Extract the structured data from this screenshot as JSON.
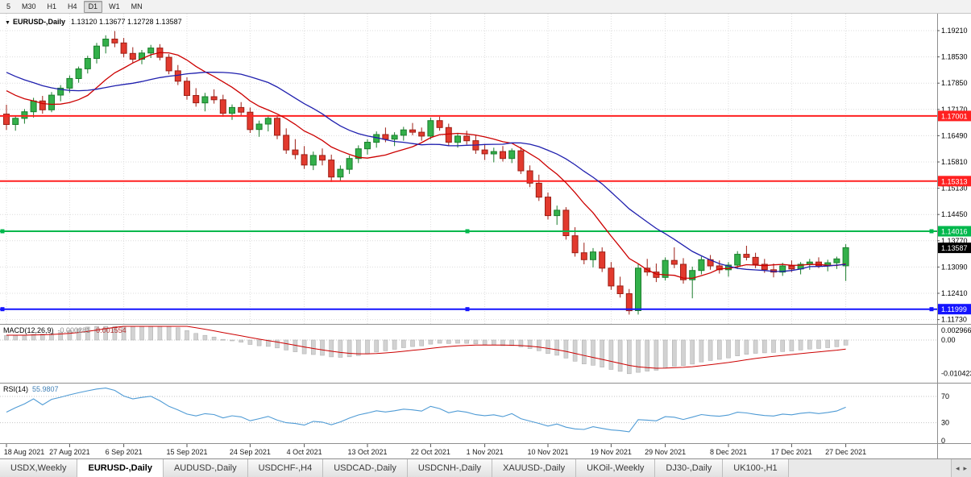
{
  "toolbar": {
    "timeframes": [
      {
        "label": "5",
        "active": false
      },
      {
        "label": "M30",
        "active": false
      },
      {
        "label": "H1",
        "active": false
      },
      {
        "label": "H4",
        "active": false
      },
      {
        "label": "D1",
        "active": true
      },
      {
        "label": "W1",
        "active": false
      },
      {
        "label": "MN",
        "active": false
      }
    ]
  },
  "chart": {
    "title": {
      "icon": "▼",
      "symbol": "EURUSD-,Daily",
      "ohlc": "1.13120 1.13677 1.12728 1.13587"
    },
    "price_axis_labels": [
      "1.19210",
      "1.18530",
      "1.17850",
      "1.17170",
      "1.16490",
      "1.15810",
      "1.15130",
      "1.14450",
      "1.13770",
      "1.13090",
      "1.12410",
      "1.11730"
    ],
    "price_axis_max": 1.1921,
    "price_axis_min": 1.1173,
    "hlines": [
      {
        "value": 1.17001,
        "label": "1.17001",
        "color": "#ff2020",
        "width": 2,
        "handles": false
      },
      {
        "value": 1.15313,
        "label": "1.15313",
        "color": "#ff2020",
        "width": 2,
        "handles": false
      },
      {
        "value": 1.14016,
        "label": "1.14016",
        "color": "#00b84c",
        "width": 2,
        "handles": true
      },
      {
        "value": 1.11999,
        "label": "1.11999",
        "color": "#1414ff",
        "width": 2,
        "handles": true
      }
    ],
    "current_price": {
      "value": 1.13587,
      "label": "1.13587",
      "bg": "#000000"
    },
    "colors": {
      "up_fill": "#33b04a",
      "up_stroke": "#1b7d2c",
      "down_fill": "#e23a2e",
      "down_stroke": "#9c1f16",
      "ma_fast": "#cc0000",
      "ma_slow": "#1f1fae",
      "grid": "#dcdcdc",
      "divider": "#8e8e8e",
      "axis_text": "#000000",
      "macd_bar_fill": "#d2d2d2",
      "macd_bar_stroke": "#b2b2b2",
      "macd_signal": "#cc0000",
      "rsi_line": "#4f9bd5",
      "level_line": "#c4c4c4"
    }
  },
  "chart_data": {
    "type": "candlestick",
    "symbol": "EURUSD-",
    "timeframe": "Daily",
    "x_tick_labels": [
      "18 Aug 2021",
      "27 Aug 2021",
      "6 Sep 2021",
      "15 Sep 2021",
      "24 Sep 2021",
      "4 Oct 2021",
      "13 Oct 2021",
      "22 Oct 2021",
      "1 Nov 2021",
      "10 Nov 2021",
      "19 Nov 2021",
      "29 Nov 2021",
      "8 Dec 2021",
      "17 Dec 2021",
      "27 Dec 2021"
    ],
    "x_tick_indices": [
      0,
      7,
      13,
      20,
      27,
      33,
      40,
      47,
      53,
      60,
      67,
      73,
      80,
      87,
      93
    ],
    "ohlc": [
      [
        1.1705,
        1.1729,
        1.1664,
        1.1678
      ],
      [
        1.1678,
        1.1701,
        1.1662,
        1.1694
      ],
      [
        1.1694,
        1.1718,
        1.168,
        1.1711
      ],
      [
        1.1711,
        1.1747,
        1.1696,
        1.1739
      ],
      [
        1.1739,
        1.1752,
        1.1706,
        1.1716
      ],
      [
        1.1716,
        1.1762,
        1.171,
        1.1754
      ],
      [
        1.1754,
        1.178,
        1.1738,
        1.1772
      ],
      [
        1.1772,
        1.1805,
        1.176,
        1.1797
      ],
      [
        1.1797,
        1.1828,
        1.1786,
        1.1822
      ],
      [
        1.1822,
        1.1856,
        1.181,
        1.1849
      ],
      [
        1.1849,
        1.1889,
        1.1836,
        1.1881
      ],
      [
        1.1881,
        1.1909,
        1.1862,
        1.1899
      ],
      [
        1.1899,
        1.192,
        1.1878,
        1.1889
      ],
      [
        1.1889,
        1.1902,
        1.1852,
        1.1862
      ],
      [
        1.1862,
        1.1878,
        1.1838,
        1.1847
      ],
      [
        1.1847,
        1.1871,
        1.1834,
        1.1863
      ],
      [
        1.1863,
        1.1884,
        1.185,
        1.1876
      ],
      [
        1.1876,
        1.1886,
        1.1844,
        1.1852
      ],
      [
        1.1852,
        1.186,
        1.1808,
        1.1817
      ],
      [
        1.1817,
        1.1832,
        1.178,
        1.179
      ],
      [
        1.179,
        1.18,
        1.1742,
        1.1753
      ],
      [
        1.1753,
        1.1772,
        1.1724,
        1.1734
      ],
      [
        1.1734,
        1.176,
        1.1712,
        1.175
      ],
      [
        1.175,
        1.1769,
        1.1732,
        1.1742
      ],
      [
        1.1742,
        1.1755,
        1.1698,
        1.1707
      ],
      [
        1.1707,
        1.173,
        1.169,
        1.1722
      ],
      [
        1.1722,
        1.1736,
        1.17,
        1.171
      ],
      [
        1.171,
        1.1722,
        1.1656,
        1.1665
      ],
      [
        1.1665,
        1.1688,
        1.1646,
        1.1679
      ],
      [
        1.1679,
        1.17,
        1.166,
        1.1694
      ],
      [
        1.1694,
        1.1702,
        1.164,
        1.165
      ],
      [
        1.165,
        1.1668,
        1.1602,
        1.1612
      ],
      [
        1.1612,
        1.164,
        1.1588,
        1.16
      ],
      [
        1.16,
        1.1622,
        1.1563,
        1.1573
      ],
      [
        1.1573,
        1.1608,
        1.156,
        1.1598
      ],
      [
        1.1598,
        1.1616,
        1.1572,
        1.1586
      ],
      [
        1.1586,
        1.16,
        1.1529,
        1.1542
      ],
      [
        1.1542,
        1.1572,
        1.1531,
        1.1562
      ],
      [
        1.1562,
        1.1598,
        1.155,
        1.159
      ],
      [
        1.159,
        1.1624,
        1.1578,
        1.1615
      ],
      [
        1.1615,
        1.164,
        1.16,
        1.1632
      ],
      [
        1.1632,
        1.166,
        1.1618,
        1.1652
      ],
      [
        1.1652,
        1.167,
        1.1632,
        1.164
      ],
      [
        1.164,
        1.1658,
        1.1622,
        1.165
      ],
      [
        1.165,
        1.1672,
        1.1636,
        1.1664
      ],
      [
        1.1664,
        1.1682,
        1.165,
        1.1658
      ],
      [
        1.1658,
        1.167,
        1.1636,
        1.1648
      ],
      [
        1.1648,
        1.1696,
        1.164,
        1.1688
      ],
      [
        1.1688,
        1.1698,
        1.1662,
        1.167
      ],
      [
        1.167,
        1.168,
        1.1622,
        1.1632
      ],
      [
        1.1632,
        1.1656,
        1.1618,
        1.1648
      ],
      [
        1.1648,
        1.1662,
        1.1626,
        1.1636
      ],
      [
        1.1636,
        1.165,
        1.1602,
        1.1612
      ],
      [
        1.1612,
        1.1628,
        1.1586,
        1.1602
      ],
      [
        1.1602,
        1.1618,
        1.158,
        1.1608
      ],
      [
        1.1608,
        1.1622,
        1.1582,
        1.159
      ],
      [
        1.159,
        1.1616,
        1.1578,
        1.161
      ],
      [
        1.161,
        1.162,
        1.155,
        1.1558
      ],
      [
        1.1558,
        1.1572,
        1.1516,
        1.1526
      ],
      [
        1.1526,
        1.1548,
        1.148,
        1.149
      ],
      [
        1.149,
        1.1502,
        1.1432,
        1.1442
      ],
      [
        1.1442,
        1.1468,
        1.1418,
        1.1456
      ],
      [
        1.1456,
        1.1464,
        1.138,
        1.139
      ],
      [
        1.139,
        1.1412,
        1.1336,
        1.1346
      ],
      [
        1.1346,
        1.1372,
        1.1316,
        1.1328
      ],
      [
        1.1328,
        1.1358,
        1.1308,
        1.1348
      ],
      [
        1.1348,
        1.136,
        1.1296,
        1.1306
      ],
      [
        1.1306,
        1.1322,
        1.125,
        1.126
      ],
      [
        1.126,
        1.1284,
        1.123,
        1.124
      ],
      [
        1.124,
        1.1252,
        1.1186,
        1.1196
      ],
      [
        1.1196,
        1.1316,
        1.1186,
        1.1306
      ],
      [
        1.1306,
        1.133,
        1.1286,
        1.1296
      ],
      [
        1.1296,
        1.1318,
        1.127,
        1.1282
      ],
      [
        1.1282,
        1.1334,
        1.1274,
        1.1326
      ],
      [
        1.1326,
        1.136,
        1.1306,
        1.1316
      ],
      [
        1.1316,
        1.1332,
        1.1266,
        1.1276
      ],
      [
        1.1276,
        1.131,
        1.1228,
        1.13
      ],
      [
        1.13,
        1.1336,
        1.129,
        1.1328
      ],
      [
        1.1328,
        1.134,
        1.1302,
        1.1312
      ],
      [
        1.1312,
        1.1326,
        1.1292,
        1.1302
      ],
      [
        1.1302,
        1.1322,
        1.1284,
        1.1314
      ],
      [
        1.1314,
        1.135,
        1.1304,
        1.1342
      ],
      [
        1.1342,
        1.1364,
        1.1326,
        1.1334
      ],
      [
        1.1334,
        1.1346,
        1.1306,
        1.1316
      ],
      [
        1.1316,
        1.133,
        1.1294,
        1.1302
      ],
      [
        1.1302,
        1.1318,
        1.1282,
        1.1296
      ],
      [
        1.1296,
        1.132,
        1.1286,
        1.1312
      ],
      [
        1.1312,
        1.1326,
        1.1296,
        1.1304
      ],
      [
        1.1304,
        1.1322,
        1.129,
        1.1316
      ],
      [
        1.1316,
        1.133,
        1.1302,
        1.1322
      ],
      [
        1.1322,
        1.1334,
        1.1306,
        1.1312
      ],
      [
        1.1312,
        1.1328,
        1.1298,
        1.132
      ],
      [
        1.132,
        1.1336,
        1.1304,
        1.133
      ],
      [
        1.1312,
        1.1368,
        1.1273,
        1.1359
      ]
    ],
    "overlays": [
      {
        "name": "ma-fast",
        "type": "sma",
        "period": 10,
        "color": "#cc0000"
      },
      {
        "name": "ma-slow",
        "type": "sma",
        "period": 20,
        "color": "#1f1fae"
      }
    ],
    "indicators": {
      "macd": {
        "label": "MACD(12,26,9)",
        "value_main": "-0.000281",
        "value_signal": "-0.001554",
        "axis_labels": [
          "0.002966",
          "0.00",
          "-0.010423"
        ],
        "axis_values": [
          0.002966,
          0,
          -0.010423
        ],
        "fast": 12,
        "slow": 26,
        "signal": 9
      },
      "rsi": {
        "label": "RSI(14)",
        "value": "55.9807",
        "axis_labels": [
          "70",
          "30",
          "0"
        ],
        "axis_values": [
          70,
          30,
          0
        ],
        "levels": [
          70,
          30
        ],
        "period": 14
      }
    }
  },
  "tabs": {
    "items": [
      {
        "label": "USDX,Weekly",
        "active": false
      },
      {
        "label": "EURUSD-,Daily",
        "active": true
      },
      {
        "label": "AUDUSD-,Daily",
        "active": false
      },
      {
        "label": "USDCHF-,H4",
        "active": false
      },
      {
        "label": "USDCAD-,Daily",
        "active": false
      },
      {
        "label": "USDCNH-,Daily",
        "active": false
      },
      {
        "label": "XAUUSD-,Daily",
        "active": false
      },
      {
        "label": "UKOil-,Weekly",
        "active": false
      },
      {
        "label": "DJ30-,Daily",
        "active": false
      },
      {
        "label": "UK100-,H1",
        "active": false
      }
    ],
    "scroll_icons": [
      "◂",
      "▸"
    ]
  }
}
